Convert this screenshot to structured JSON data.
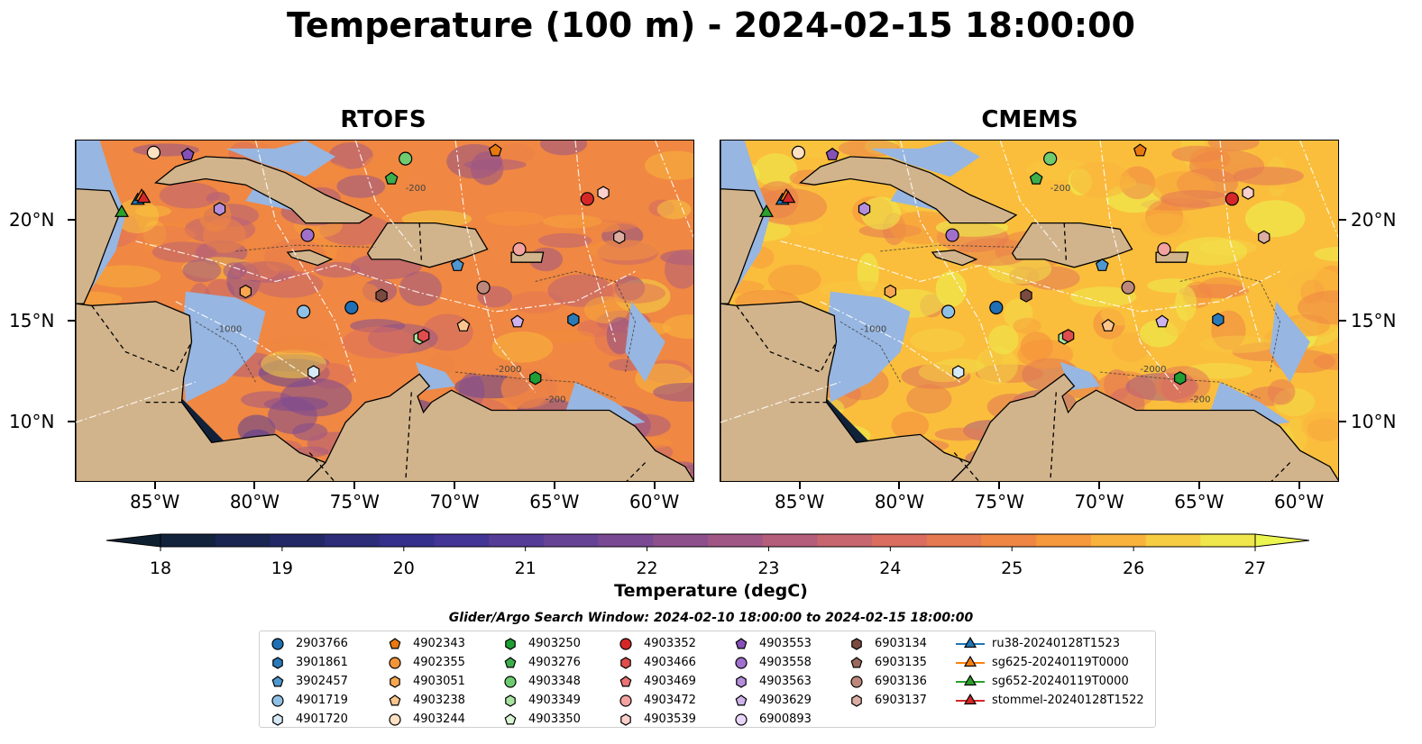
{
  "title": "Temperature (100 m) - 2024-02-15 18:00:00",
  "panels": [
    {
      "title": "RTOFS",
      "model": "rtofs"
    },
    {
      "title": "CMEMS",
      "model": "cmems"
    }
  ],
  "chart_data": {
    "type": "heatmap",
    "variable": "Temperature (100 m)",
    "timestamp": "2024-02-15 18:00:00",
    "lon_range": [
      -89,
      -58
    ],
    "lat_range": [
      7,
      24
    ],
    "x_ticks": [
      "85°W",
      "80°W",
      "75°W",
      "70°W",
      "65°W",
      "60°W"
    ],
    "x_tick_values": [
      -85,
      -80,
      -75,
      -70,
      -65,
      -60
    ],
    "y_ticks": [
      "20°N",
      "15°N",
      "10°N"
    ],
    "y_tick_values": [
      20,
      15,
      10
    ],
    "colorbar": {
      "label": "Temperature (degC)",
      "min": 18,
      "max": 27,
      "extend": "both",
      "ticks": [
        "18",
        "19",
        "20",
        "21",
        "22",
        "23",
        "24",
        "25",
        "26",
        "27"
      ],
      "colormap": "thermal"
    },
    "contour_labels": [
      "-200",
      "-1000",
      "-2000"
    ],
    "land_color": "#d2b48c",
    "shallow_color": "#97b6e1",
    "search_window": "Glider/Argo Search Window: 2024-02-10 18:00:00 to 2024-02-15 18:00:00",
    "legend_columns": [
      [
        {
          "id": "2903766",
          "marker": "circle",
          "color": "#1f6fb4"
        },
        {
          "id": "3901861",
          "marker": "hexagon",
          "color": "#2a7ab8"
        },
        {
          "id": "3902457",
          "marker": "pentagon",
          "color": "#4f97cf"
        },
        {
          "id": "4901719",
          "marker": "circle",
          "color": "#8fc1e6"
        },
        {
          "id": "4901720",
          "marker": "hexagon",
          "color": "#d6e9f7"
        }
      ],
      [
        {
          "id": "4902343",
          "marker": "pentagon",
          "color": "#e8790f"
        },
        {
          "id": "4902355",
          "marker": "circle",
          "color": "#f39438"
        },
        {
          "id": "4903051",
          "marker": "hexagon",
          "color": "#f8a650"
        },
        {
          "id": "4903238",
          "marker": "pentagon",
          "color": "#fbc68e"
        },
        {
          "id": "4903244",
          "marker": "circle",
          "color": "#fde1c2"
        }
      ],
      [
        {
          "id": "4903250",
          "marker": "hexagon",
          "color": "#1f9e33"
        },
        {
          "id": "4903276",
          "marker": "pentagon",
          "color": "#3cae4c"
        },
        {
          "id": "4903348",
          "marker": "circle",
          "color": "#6fcb6f"
        },
        {
          "id": "4903349",
          "marker": "hexagon",
          "color": "#a7e4a0"
        },
        {
          "id": "4903350",
          "marker": "pentagon",
          "color": "#d8f5d2"
        }
      ],
      [
        {
          "id": "4903352",
          "marker": "circle",
          "color": "#d62728"
        },
        {
          "id": "4903466",
          "marker": "hexagon",
          "color": "#e04d4d"
        },
        {
          "id": "4903469",
          "marker": "pentagon",
          "color": "#ea7373"
        },
        {
          "id": "4903472",
          "marker": "circle",
          "color": "#f4a2a0"
        },
        {
          "id": "4903539",
          "marker": "hexagon",
          "color": "#fbcfcc"
        }
      ],
      [
        {
          "id": "4903553",
          "marker": "pentagon",
          "color": "#8550b8"
        },
        {
          "id": "4903558",
          "marker": "circle",
          "color": "#a070cc"
        },
        {
          "id": "4903563",
          "marker": "hexagon",
          "color": "#b48edb"
        },
        {
          "id": "4903629",
          "marker": "pentagon",
          "color": "#cfb3ec"
        },
        {
          "id": "6900893",
          "marker": "circle",
          "color": "#e8d6f8"
        }
      ],
      [
        {
          "id": "6903134",
          "marker": "hexagon",
          "color": "#7b4b40"
        },
        {
          "id": "6903135",
          "marker": "pentagon",
          "color": "#9b6a5c"
        },
        {
          "id": "6903136",
          "marker": "circle",
          "color": "#bd887b"
        },
        {
          "id": "6903137",
          "marker": "hexagon",
          "color": "#dcada2"
        }
      ],
      [
        {
          "id": "ru38-20240128T1523",
          "marker": "triangle",
          "color": "#1f77b4",
          "line": true
        },
        {
          "id": "sg625-20240119T0000",
          "marker": "triangle",
          "color": "#ff7f0e",
          "line": true
        },
        {
          "id": "sg652-20240119T0000",
          "marker": "triangle",
          "color": "#2ca02c",
          "line": true
        },
        {
          "id": "stommel-20240128T1522",
          "marker": "triangle",
          "color": "#d62728",
          "line": true
        }
      ]
    ],
    "floats": [
      {
        "id": "2903766",
        "lon": -75.2,
        "lat": 15.7
      },
      {
        "id": "3901861",
        "lon": -64.1,
        "lat": 15.1
      },
      {
        "id": "3902457",
        "lon": -69.9,
        "lat": 17.8
      },
      {
        "id": "4901719",
        "lon": -77.6,
        "lat": 15.5
      },
      {
        "id": "4901720",
        "lon": -77.1,
        "lat": 12.5
      },
      {
        "id": "4902343",
        "lon": -68.0,
        "lat": 23.5
      },
      {
        "id": "4903051",
        "lon": -80.5,
        "lat": 16.5
      },
      {
        "id": "4903238",
        "lon": -69.6,
        "lat": 14.8
      },
      {
        "id": "4903244",
        "lon": -85.1,
        "lat": 23.4
      },
      {
        "id": "4903250",
        "lon": -66.0,
        "lat": 12.2
      },
      {
        "id": "4903276",
        "lon": -73.2,
        "lat": 22.1
      },
      {
        "id": "4903348",
        "lon": -72.5,
        "lat": 23.1
      },
      {
        "id": "4903349",
        "lon": -71.8,
        "lat": 14.2
      },
      {
        "id": "4903352",
        "lon": -63.4,
        "lat": 21.1
      },
      {
        "id": "4903466",
        "lon": -71.6,
        "lat": 14.3
      },
      {
        "id": "4903472",
        "lon": -66.8,
        "lat": 18.6
      },
      {
        "id": "4903539",
        "lon": -62.6,
        "lat": 21.4
      },
      {
        "id": "4903553",
        "lon": -83.4,
        "lat": 23.3
      },
      {
        "id": "4903558",
        "lon": -77.4,
        "lat": 19.3
      },
      {
        "id": "4903563",
        "lon": -81.8,
        "lat": 20.6
      },
      {
        "id": "4903629",
        "lon": -66.9,
        "lat": 15.0
      },
      {
        "id": "6903134",
        "lon": -73.7,
        "lat": 16.3
      },
      {
        "id": "6903136",
        "lon": -68.6,
        "lat": 16.7
      },
      {
        "id": "6903137",
        "lon": -61.8,
        "lat": 19.2
      },
      {
        "id": "ru38-20240128T1523",
        "lon": -85.9,
        "lat": 21.1
      },
      {
        "id": "sg625-20240119T0000",
        "lon": -85.7,
        "lat": 21.3
      },
      {
        "id": "sg652-20240119T0000",
        "lon": -86.7,
        "lat": 20.5
      },
      {
        "id": "stommel-20240128T1522",
        "lon": -85.6,
        "lat": 21.2
      }
    ]
  }
}
